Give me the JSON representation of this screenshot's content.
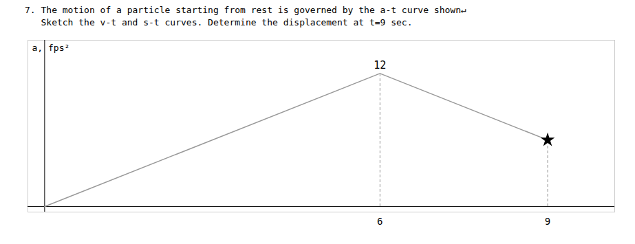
{
  "chart_data": {
    "type": "line",
    "title": "7. The motion of a particle starting from rest is governed by the a-t curve shown↵",
    "subtitle": "   Sketch the v-t and s-t curves. Determine the displacement at t=9 sec.",
    "ylabel": "a, fps²",
    "x": [
      0,
      6,
      9
    ],
    "series": [
      {
        "values": [
          0,
          12,
          6
        ],
        "color": "#999999"
      }
    ],
    "xlim": [
      -0.3,
      10.2
    ],
    "ylim": [
      -0.5,
      15
    ],
    "xticks": [
      6,
      9
    ],
    "yticks": [],
    "tick_labels": "x",
    "grid": false,
    "annotations": [
      {
        "text": "12",
        "x": 6,
        "y": 12
      }
    ],
    "points": [
      {
        "x": 9,
        "y": 6,
        "marker": "star",
        "color": "#000000"
      }
    ],
    "drop_lines": {
      "line_style": "dashed",
      "color": "#999999",
      "points": [
        {
          "x": 6,
          "y": 12
        },
        {
          "x": 9,
          "y": 6
        }
      ]
    }
  }
}
